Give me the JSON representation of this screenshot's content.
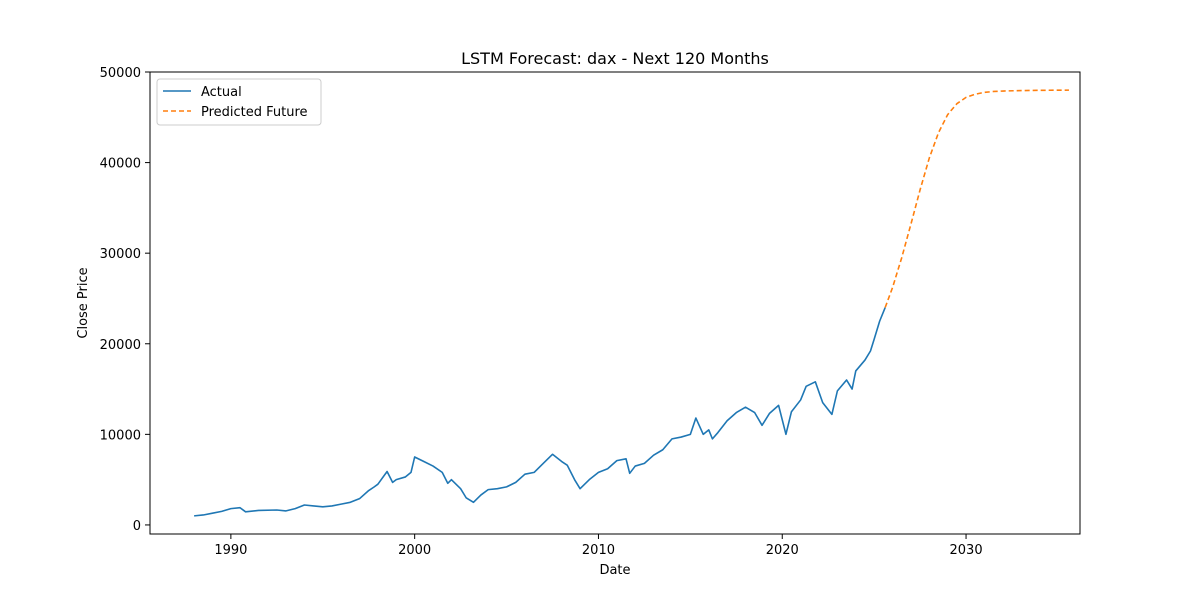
{
  "chart_data": {
    "type": "line",
    "title": "LSTM Forecast: dax - Next 120 Months",
    "xlabel": "Date",
    "ylabel": "Close Price",
    "xlim": [
      1985.6,
      2036.2
    ],
    "ylim": [
      -1000,
      50000
    ],
    "x_ticks": [
      1990,
      2000,
      2010,
      2020,
      2030
    ],
    "x_tick_labels": [
      "1990",
      "2000",
      "2010",
      "2020",
      "2030"
    ],
    "y_ticks": [
      0,
      10000,
      20000,
      30000,
      40000,
      50000
    ],
    "y_tick_labels": [
      "0",
      "10000",
      "20000",
      "30000",
      "40000",
      "50000"
    ],
    "grid": false,
    "legend_position": "upper-left",
    "series": [
      {
        "name": "Actual",
        "color": "#1f77b4",
        "style": "solid",
        "points": [
          [
            1988.0,
            1000
          ],
          [
            1988.5,
            1100
          ],
          [
            1989.0,
            1300
          ],
          [
            1989.5,
            1500
          ],
          [
            1990.0,
            1800
          ],
          [
            1990.5,
            1900
          ],
          [
            1990.8,
            1450
          ],
          [
            1991.5,
            1600
          ],
          [
            1992.5,
            1650
          ],
          [
            1993.0,
            1550
          ],
          [
            1993.5,
            1800
          ],
          [
            1994.0,
            2200
          ],
          [
            1994.5,
            2100
          ],
          [
            1995.0,
            2000
          ],
          [
            1995.5,
            2100
          ],
          [
            1996.0,
            2300
          ],
          [
            1996.5,
            2500
          ],
          [
            1997.0,
            2900
          ],
          [
            1997.5,
            3800
          ],
          [
            1997.8,
            4200
          ],
          [
            1998.0,
            4500
          ],
          [
            1998.5,
            5900
          ],
          [
            1998.8,
            4700
          ],
          [
            1999.0,
            5000
          ],
          [
            1999.5,
            5300
          ],
          [
            1999.8,
            5800
          ],
          [
            2000.0,
            7500
          ],
          [
            2000.5,
            7000
          ],
          [
            2001.0,
            6500
          ],
          [
            2001.5,
            5800
          ],
          [
            2001.8,
            4600
          ],
          [
            2002.0,
            5000
          ],
          [
            2002.5,
            4000
          ],
          [
            2002.8,
            3000
          ],
          [
            2003.2,
            2500
          ],
          [
            2003.6,
            3300
          ],
          [
            2004.0,
            3900
          ],
          [
            2004.5,
            4000
          ],
          [
            2005.0,
            4200
          ],
          [
            2005.5,
            4700
          ],
          [
            2006.0,
            5600
          ],
          [
            2006.5,
            5800
          ],
          [
            2007.0,
            6800
          ],
          [
            2007.5,
            7800
          ],
          [
            2008.0,
            7000
          ],
          [
            2008.3,
            6600
          ],
          [
            2008.7,
            5000
          ],
          [
            2009.0,
            4000
          ],
          [
            2009.5,
            5000
          ],
          [
            2010.0,
            5800
          ],
          [
            2010.5,
            6200
          ],
          [
            2011.0,
            7100
          ],
          [
            2011.5,
            7300
          ],
          [
            2011.7,
            5700
          ],
          [
            2012.0,
            6500
          ],
          [
            2012.5,
            6800
          ],
          [
            2013.0,
            7700
          ],
          [
            2013.5,
            8300
          ],
          [
            2014.0,
            9500
          ],
          [
            2014.5,
            9700
          ],
          [
            2015.0,
            10000
          ],
          [
            2015.3,
            11800
          ],
          [
            2015.7,
            10000
          ],
          [
            2016.0,
            10500
          ],
          [
            2016.2,
            9500
          ],
          [
            2016.5,
            10200
          ],
          [
            2017.0,
            11500
          ],
          [
            2017.5,
            12400
          ],
          [
            2018.0,
            13000
          ],
          [
            2018.5,
            12400
          ],
          [
            2018.9,
            11000
          ],
          [
            2019.3,
            12300
          ],
          [
            2019.8,
            13200
          ],
          [
            2020.2,
            10000
          ],
          [
            2020.5,
            12500
          ],
          [
            2021.0,
            13800
          ],
          [
            2021.3,
            15300
          ],
          [
            2021.8,
            15800
          ],
          [
            2022.2,
            13500
          ],
          [
            2022.7,
            12200
          ],
          [
            2023.0,
            14800
          ],
          [
            2023.5,
            16000
          ],
          [
            2023.8,
            15000
          ],
          [
            2024.0,
            17000
          ],
          [
            2024.5,
            18200
          ],
          [
            2024.8,
            19200
          ],
          [
            2025.0,
            20500
          ],
          [
            2025.3,
            22500
          ],
          [
            2025.6,
            24000
          ]
        ]
      },
      {
        "name": "Predicted Future",
        "color": "#ff7f0e",
        "style": "dashed",
        "points": [
          [
            2025.6,
            24000
          ],
          [
            2026.0,
            26200
          ],
          [
            2026.5,
            29500
          ],
          [
            2027.0,
            33200
          ],
          [
            2027.5,
            37000
          ],
          [
            2028.0,
            40500
          ],
          [
            2028.5,
            43300
          ],
          [
            2029.0,
            45300
          ],
          [
            2029.5,
            46500
          ],
          [
            2030.0,
            47200
          ],
          [
            2030.5,
            47550
          ],
          [
            2031.0,
            47750
          ],
          [
            2031.5,
            47850
          ],
          [
            2032.0,
            47900
          ],
          [
            2033.0,
            47950
          ],
          [
            2034.0,
            47980
          ],
          [
            2035.6,
            48000
          ]
        ]
      }
    ]
  }
}
